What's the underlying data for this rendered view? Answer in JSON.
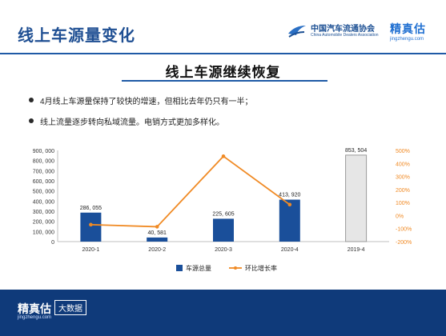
{
  "header": {
    "title": "线上车源量变化",
    "org_logo_cn": "中国汽车流通协会",
    "org_logo_en": "China Automobile Dealers Association",
    "brand_cn": "精真估",
    "brand_en": "jingzhengu.com"
  },
  "slide": {
    "subtitle": "线上车源继续恢复",
    "bullets": [
      "4月线上车源量保持了较快的增速，但相比去年仍只有一半；",
      "线上流量逐步转向私域流量。电销方式更加多样化。"
    ]
  },
  "footer": {
    "brand_cn": "精真估",
    "brand_en": "jingzhengu.com",
    "badge": "大数据"
  },
  "colors": {
    "primary": "#1f5aa6",
    "bar": "#1a4f9a",
    "bar_highlight": "#e6e6e6",
    "line": "#f08a24",
    "footer": "#0f3a7a"
  },
  "chart_data": {
    "type": "bar",
    "categories": [
      "2020-1",
      "2020-2",
      "2020-3",
      "2020-4",
      "2019-4"
    ],
    "series": [
      {
        "name": "车源总量",
        "type": "bar",
        "axis": "left",
        "values": [
          286055,
          40581,
          225605,
          413920,
          853504
        ],
        "labels": [
          "286, 055",
          "40, 581",
          "225, 605",
          "413, 920",
          "853, 504"
        ]
      },
      {
        "name": "环比增长率",
        "type": "line",
        "axis": "right",
        "values": [
          -70,
          -86,
          455,
          84,
          null
        ]
      }
    ],
    "y_left": {
      "min": 0,
      "max": 900000,
      "ticks": [
        "0",
        "100, 000",
        "200, 000",
        "300, 000",
        "400, 000",
        "500, 000",
        "600, 000",
        "700, 000",
        "800, 000",
        "900, 000"
      ]
    },
    "y_right": {
      "min": -200,
      "max": 500,
      "ticks": [
        "-200%",
        "-100%",
        "0%",
        "100%",
        "200%",
        "300%",
        "400%",
        "500%"
      ]
    },
    "legend_position": "bottom",
    "grid": false
  }
}
